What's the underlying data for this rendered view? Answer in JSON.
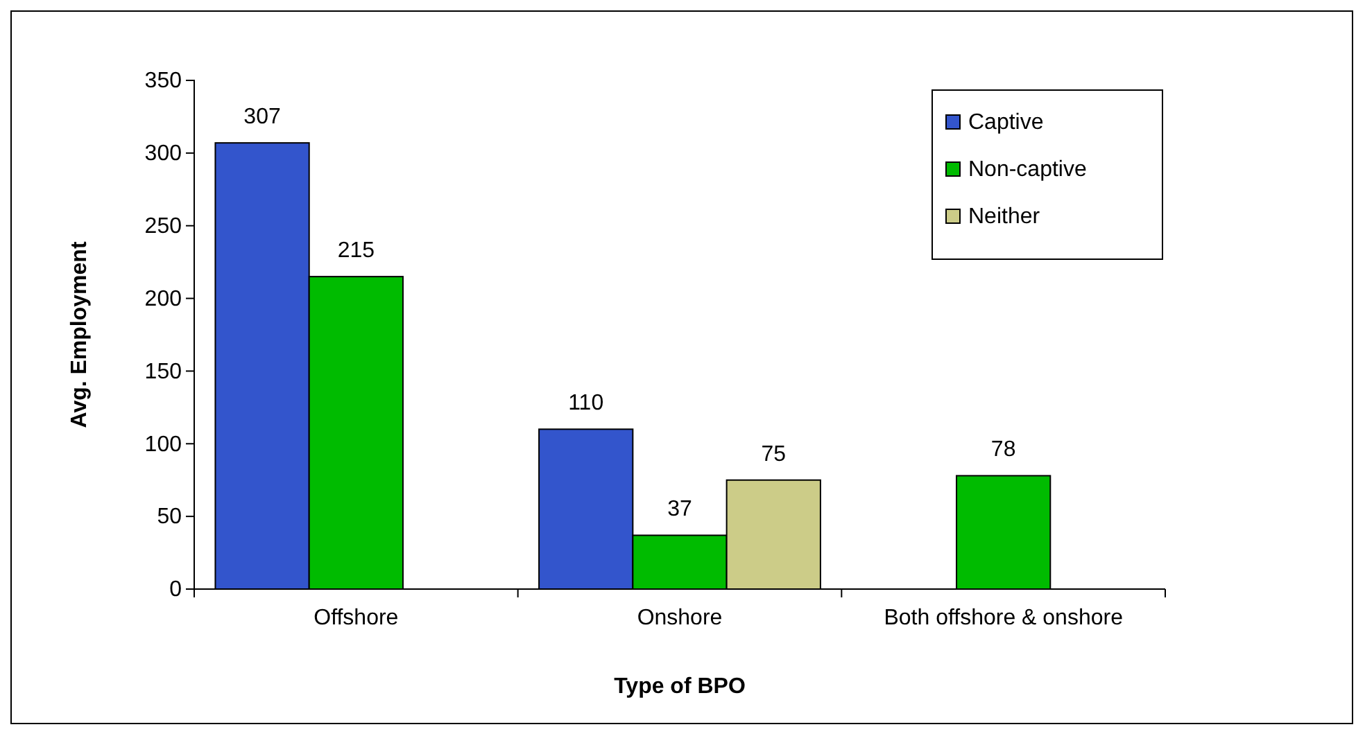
{
  "chart_data": {
    "type": "bar",
    "xlabel": "Type of BPO",
    "ylabel": "Avg. Employment",
    "categories": [
      "Offshore",
      "Onshore",
      "Both offshore & onshore"
    ],
    "series": [
      {
        "name": "Captive",
        "color": "#3355cc",
        "values": [
          307,
          110,
          null
        ]
      },
      {
        "name": "Non-captive",
        "color": "#00bb00",
        "values": [
          215,
          37,
          78
        ]
      },
      {
        "name": "Neither",
        "color": "#cccc88",
        "values": [
          null,
          75,
          null
        ]
      }
    ],
    "ylim": [
      0,
      350
    ],
    "yticks": [
      0,
      50,
      100,
      150,
      200,
      250,
      300,
      350
    ],
    "grid": false,
    "legend": "top right",
    "data_labels": true
  }
}
